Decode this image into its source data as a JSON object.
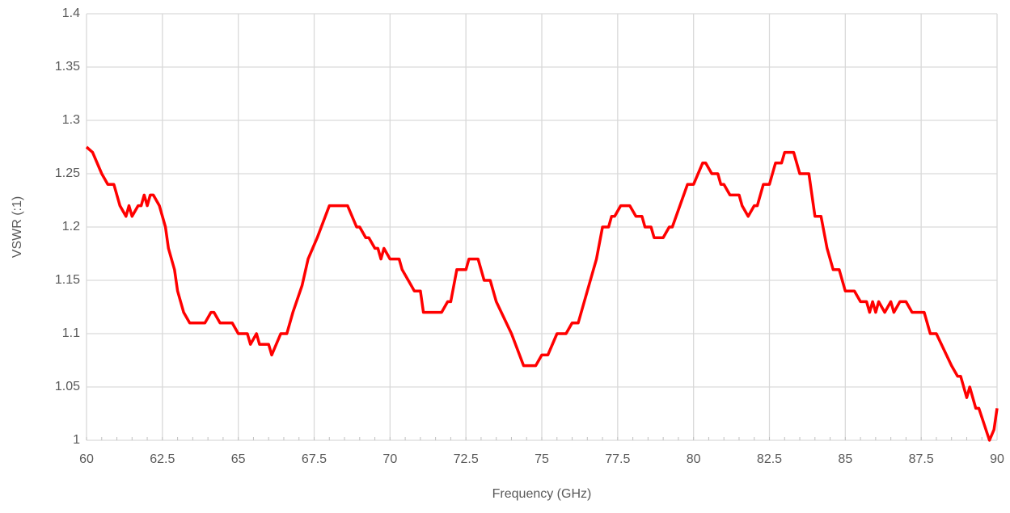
{
  "chart_data": {
    "type": "line",
    "xlabel": "Frequency (GHz)",
    "ylabel": "VSWR (:1)",
    "xlim": [
      60,
      90
    ],
    "xticks": [
      60,
      62.5,
      65,
      67.5,
      70,
      72.5,
      75,
      77.5,
      80,
      82.5,
      85,
      87.5,
      90
    ],
    "ylim": [
      1,
      1.4
    ],
    "yticks": [
      1,
      1.05,
      1.1,
      1.15,
      1.2,
      1.25,
      1.3,
      1.35,
      1.4
    ],
    "grid": true,
    "x": [
      60.0,
      60.2,
      60.5,
      60.7,
      60.9,
      61.1,
      61.3,
      61.4,
      61.5,
      61.7,
      61.8,
      61.9,
      62.0,
      62.1,
      62.2,
      62.4,
      62.6,
      62.7,
      62.9,
      63.0,
      63.2,
      63.4,
      63.7,
      63.9,
      64.1,
      64.2,
      64.4,
      64.8,
      65.0,
      65.3,
      65.4,
      65.6,
      65.7,
      66.0,
      66.1,
      66.4,
      66.6,
      66.8,
      67.1,
      67.3,
      67.6,
      68.0,
      68.3,
      68.6,
      68.9,
      69.0,
      69.2,
      69.3,
      69.5,
      69.6,
      69.7,
      69.8,
      70.0,
      70.3,
      70.4,
      70.6,
      70.8,
      71.0,
      71.1,
      71.5,
      71.7,
      71.9,
      72.0,
      72.2,
      72.5,
      72.6,
      72.9,
      73.1,
      73.3,
      73.5,
      74.0,
      74.4,
      74.8,
      75.0,
      75.2,
      75.5,
      75.8,
      76.0,
      76.2,
      76.5,
      76.8,
      77.0,
      77.2,
      77.3,
      77.4,
      77.6,
      77.9,
      78.1,
      78.3,
      78.4,
      78.6,
      78.7,
      79.0,
      79.2,
      79.3,
      79.8,
      80.0,
      80.3,
      80.4,
      80.6,
      80.8,
      80.9,
      81.0,
      81.2,
      81.5,
      81.6,
      81.8,
      82.0,
      82.1,
      82.3,
      82.5,
      82.7,
      82.9,
      83.0,
      83.3,
      83.5,
      83.8,
      84.0,
      84.2,
      84.4,
      84.6,
      84.8,
      85.0,
      85.3,
      85.5,
      85.7,
      85.8,
      85.9,
      86.0,
      86.1,
      86.3,
      86.5,
      86.6,
      86.8,
      87.0,
      87.2,
      87.6,
      87.8,
      88.0,
      88.5,
      88.7,
      88.8,
      89.0,
      89.1,
      89.3,
      89.4,
      89.75,
      89.9,
      90.0
    ],
    "series": [
      {
        "name": "VSWR",
        "color": "#ff0000",
        "values": [
          1.275,
          1.27,
          1.25,
          1.24,
          1.24,
          1.22,
          1.21,
          1.22,
          1.21,
          1.22,
          1.22,
          1.23,
          1.22,
          1.23,
          1.23,
          1.22,
          1.2,
          1.18,
          1.16,
          1.14,
          1.12,
          1.11,
          1.11,
          1.11,
          1.12,
          1.12,
          1.11,
          1.11,
          1.1,
          1.1,
          1.09,
          1.1,
          1.09,
          1.09,
          1.08,
          1.1,
          1.1,
          1.12,
          1.145,
          1.17,
          1.19,
          1.22,
          1.22,
          1.22,
          1.2,
          1.2,
          1.19,
          1.19,
          1.18,
          1.18,
          1.17,
          1.18,
          1.17,
          1.17,
          1.16,
          1.15,
          1.14,
          1.14,
          1.12,
          1.12,
          1.12,
          1.13,
          1.13,
          1.16,
          1.16,
          1.17,
          1.17,
          1.15,
          1.15,
          1.13,
          1.1,
          1.07,
          1.07,
          1.08,
          1.08,
          1.1,
          1.1,
          1.11,
          1.11,
          1.14,
          1.17,
          1.2,
          1.2,
          1.21,
          1.21,
          1.22,
          1.22,
          1.21,
          1.21,
          1.2,
          1.2,
          1.19,
          1.19,
          1.2,
          1.2,
          1.24,
          1.24,
          1.26,
          1.26,
          1.25,
          1.25,
          1.24,
          1.24,
          1.23,
          1.23,
          1.22,
          1.21,
          1.22,
          1.22,
          1.24,
          1.24,
          1.26,
          1.26,
          1.27,
          1.27,
          1.25,
          1.25,
          1.21,
          1.21,
          1.18,
          1.16,
          1.16,
          1.14,
          1.14,
          1.13,
          1.13,
          1.12,
          1.13,
          1.12,
          1.13,
          1.12,
          1.13,
          1.12,
          1.13,
          1.13,
          1.12,
          1.12,
          1.1,
          1.1,
          1.07,
          1.06,
          1.06,
          1.04,
          1.05,
          1.03,
          1.03,
          1.0,
          1.01,
          1.03
        ]
      }
    ]
  }
}
